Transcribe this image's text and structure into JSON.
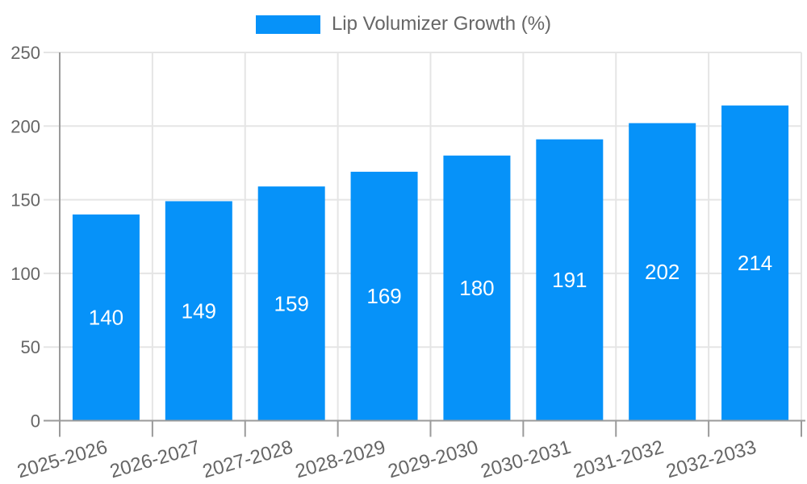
{
  "legend": {
    "label": "Lip Volumizer Growth (%)"
  },
  "chart_data": {
    "type": "bar",
    "title": "Lip Volumizer Growth (%)",
    "categories": [
      "2025-2026",
      "2026-2027",
      "2027-2028",
      "2028-2029",
      "2029-2030",
      "2030-2031",
      "2031-2032",
      "2032-2033"
    ],
    "series": [
      {
        "name": "Lip Volumizer Growth (%)",
        "values": [
          140,
          149,
          159,
          169,
          180,
          191,
          202,
          214
        ]
      }
    ],
    "value_labels_shown": true,
    "value_label_position": "inside-center",
    "xlabel": "",
    "ylabel": "",
    "ylim": [
      0,
      250
    ],
    "yticks": [
      0,
      50,
      100,
      150,
      200,
      250
    ],
    "grid": true,
    "legend_position": "top",
    "colors": {
      "bar": "#0692f9",
      "value_label": "#ffffff",
      "tick_text": "#666666",
      "grid_line": "#e5e5e5",
      "axis_line": "#9a9a9a"
    }
  }
}
